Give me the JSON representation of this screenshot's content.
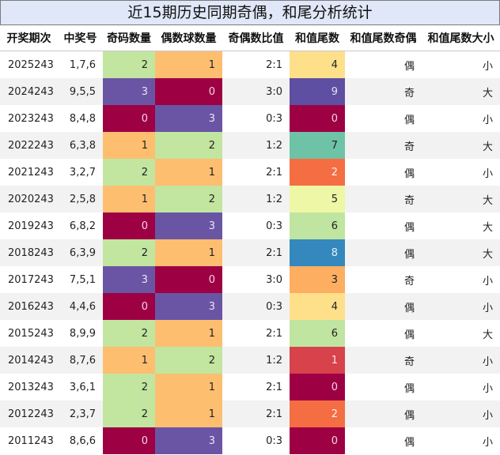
{
  "title": "近15期历史同期奇偶，和尾分析统计",
  "headers": [
    "开奖期次",
    "中奖号",
    "奇码数量",
    "偶数球数量",
    "奇偶数比值",
    "和值尾数",
    "和值尾数奇偶",
    "和值尾数大小"
  ],
  "rows": [
    {
      "period": "2025243",
      "numbers": "1,7,6",
      "odd": "2",
      "even": "1",
      "ratio": "2:1",
      "tail": "4",
      "tail_parity": "偶",
      "tail_size": "小"
    },
    {
      "period": "2024243",
      "numbers": "9,5,5",
      "odd": "3",
      "even": "0",
      "ratio": "3:0",
      "tail": "9",
      "tail_parity": "奇",
      "tail_size": "大"
    },
    {
      "period": "2023243",
      "numbers": "8,4,8",
      "odd": "0",
      "even": "3",
      "ratio": "0:3",
      "tail": "0",
      "tail_parity": "偶",
      "tail_size": "小"
    },
    {
      "period": "2022243",
      "numbers": "6,3,8",
      "odd": "1",
      "even": "2",
      "ratio": "1:2",
      "tail": "7",
      "tail_parity": "奇",
      "tail_size": "大"
    },
    {
      "period": "2021243",
      "numbers": "3,2,7",
      "odd": "2",
      "even": "1",
      "ratio": "2:1",
      "tail": "2",
      "tail_parity": "偶",
      "tail_size": "小"
    },
    {
      "period": "2020243",
      "numbers": "2,5,8",
      "odd": "1",
      "even": "2",
      "ratio": "1:2",
      "tail": "5",
      "tail_parity": "奇",
      "tail_size": "大"
    },
    {
      "period": "2019243",
      "numbers": "6,8,2",
      "odd": "0",
      "even": "3",
      "ratio": "0:3",
      "tail": "6",
      "tail_parity": "偶",
      "tail_size": "大"
    },
    {
      "period": "2018243",
      "numbers": "6,3,9",
      "odd": "2",
      "even": "1",
      "ratio": "2:1",
      "tail": "8",
      "tail_parity": "偶",
      "tail_size": "大"
    },
    {
      "period": "2017243",
      "numbers": "7,5,1",
      "odd": "3",
      "even": "0",
      "ratio": "3:0",
      "tail": "3",
      "tail_parity": "奇",
      "tail_size": "小"
    },
    {
      "period": "2016243",
      "numbers": "4,4,6",
      "odd": "0",
      "even": "3",
      "ratio": "0:3",
      "tail": "4",
      "tail_parity": "偶",
      "tail_size": "小"
    },
    {
      "period": "2015243",
      "numbers": "8,9,9",
      "odd": "2",
      "even": "1",
      "ratio": "2:1",
      "tail": "6",
      "tail_parity": "偶",
      "tail_size": "大"
    },
    {
      "period": "2014243",
      "numbers": "8,7,6",
      "odd": "1",
      "even": "2",
      "ratio": "1:2",
      "tail": "1",
      "tail_parity": "奇",
      "tail_size": "小"
    },
    {
      "period": "2013243",
      "numbers": "3,6,1",
      "odd": "2",
      "even": "1",
      "ratio": "2:1",
      "tail": "0",
      "tail_parity": "偶",
      "tail_size": "小"
    },
    {
      "period": "2012243",
      "numbers": "2,3,7",
      "odd": "2",
      "even": "1",
      "ratio": "2:1",
      "tail": "2",
      "tail_parity": "偶",
      "tail_size": "小"
    },
    {
      "period": "2011243",
      "numbers": "8,6,6",
      "odd": "0",
      "even": "3",
      "ratio": "0:3",
      "tail": "0",
      "tail_parity": "偶",
      "tail_size": "小"
    }
  ]
}
